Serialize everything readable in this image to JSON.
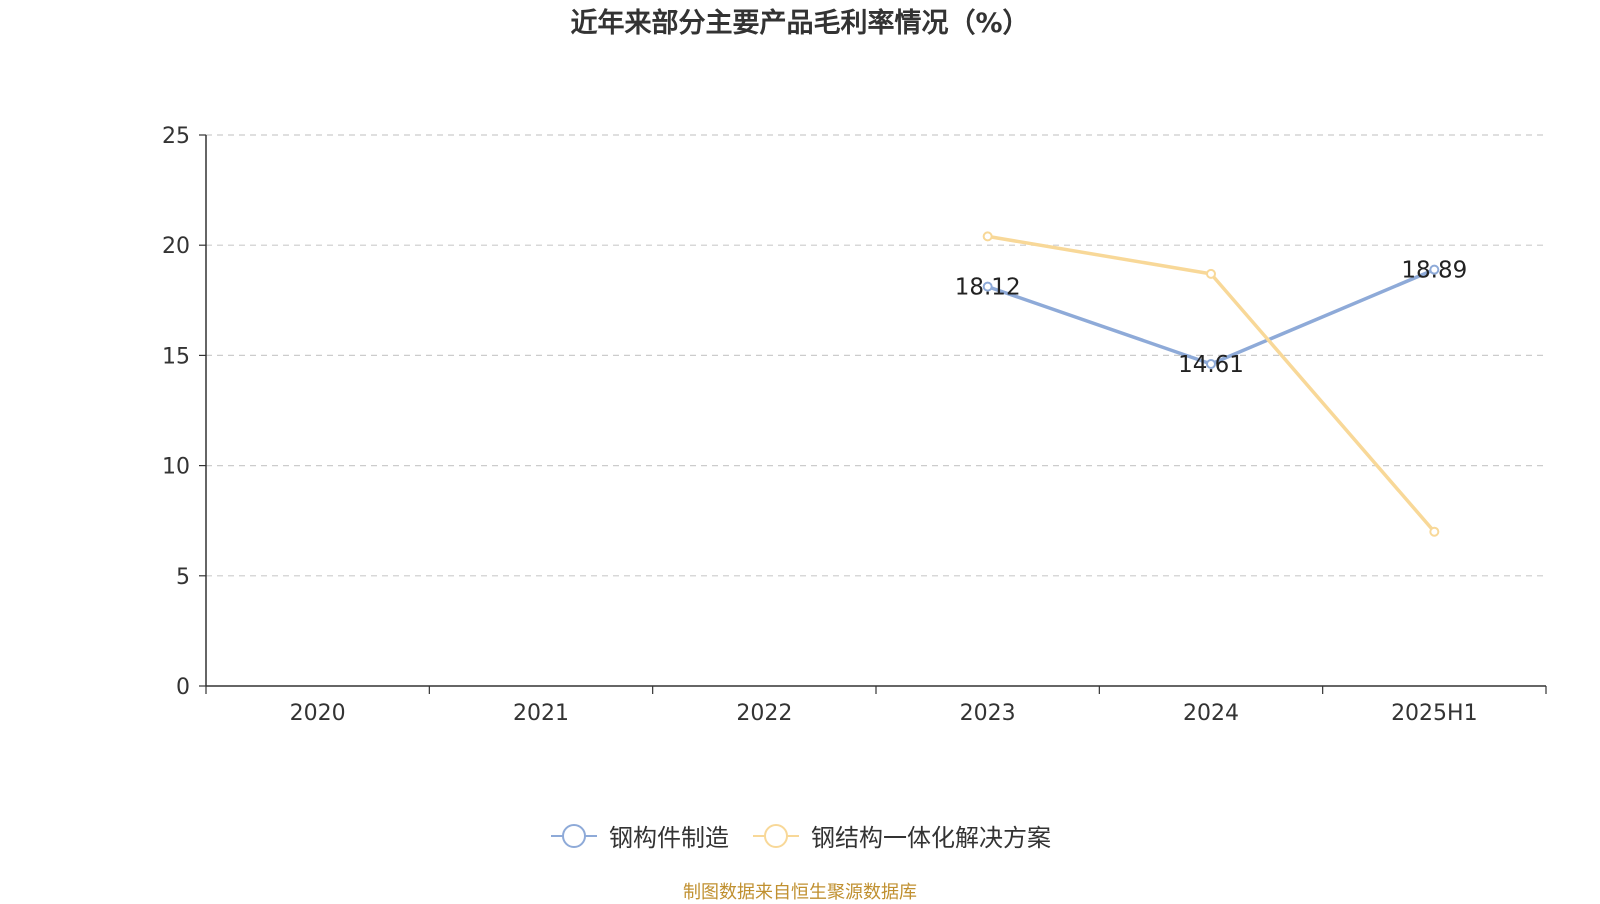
{
  "title": "近年来部分主要产品毛利率情况（%）",
  "source_note": "制图数据来自恒生聚源数据库",
  "colors": {
    "series_1": "#8eaad8",
    "series_2": "#f8d898",
    "axis": "#333333",
    "grid": "#cccccc",
    "source": "#c09030"
  },
  "chart_data": {
    "type": "line",
    "title": "近年来部分主要产品毛利率情况（%）",
    "categories": [
      "2020",
      "2021",
      "2022",
      "2023",
      "2024",
      "2025H1"
    ],
    "ylim": [
      0,
      25
    ],
    "yticks": [
      0,
      5,
      10,
      15,
      20,
      25
    ],
    "grid": true,
    "legend_position": "bottom",
    "series": [
      {
        "name": "钢构件制造",
        "color": "#8eaad8",
        "values": [
          null,
          null,
          null,
          18.12,
          14.61,
          18.89
        ],
        "labels": [
          null,
          null,
          null,
          "18.12",
          "14.61",
          "18.89"
        ]
      },
      {
        "name": "钢结构一体化解决方案",
        "color": "#f8d898",
        "values": [
          null,
          null,
          null,
          20.4,
          18.7,
          7.0
        ],
        "labels": [
          null,
          null,
          null,
          null,
          null,
          null
        ]
      }
    ]
  }
}
